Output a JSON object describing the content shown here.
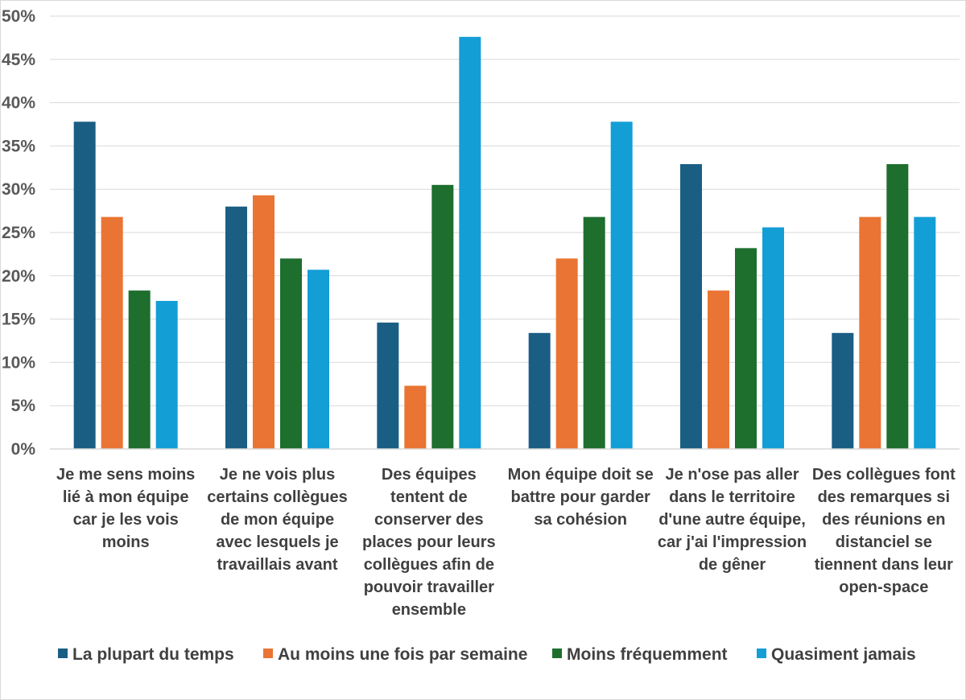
{
  "chart_data": {
    "type": "bar",
    "title": "",
    "xlabel": "",
    "ylabel": "",
    "ylim": [
      0,
      50
    ],
    "y_tick_step": 5,
    "y_tick_format": "percent",
    "grid": true,
    "legend_position": "bottom",
    "categories": [
      [
        "Je me sens moins",
        "lié à mon équipe",
        "car je les vois",
        "moins"
      ],
      [
        "Je ne vois plus",
        "certains collègues",
        "de mon équipe",
        "avec lesquels je",
        "travaillais avant"
      ],
      [
        "Des équipes",
        "tentent de",
        "conserver des",
        "places pour leurs",
        "collègues afin de",
        "pouvoir travailler",
        "ensemble"
      ],
      [
        "Mon équipe doit se",
        "battre pour garder",
        "sa cohésion"
      ],
      [
        "Je n'ose pas aller",
        "dans le territoire",
        "d'une autre équipe,",
        "car j'ai l'impression",
        "de gêner"
      ],
      [
        "Des collègues font",
        "des remarques si",
        "des réunions en",
        "distanciel se",
        "tiennent dans leur",
        "open-space"
      ]
    ],
    "series": [
      {
        "name": "La plupart du temps",
        "color": "#1b5e84",
        "values": [
          37.8,
          28.0,
          14.6,
          13.4,
          32.9,
          13.4
        ]
      },
      {
        "name": "Au moins une fois par semaine",
        "color": "#ea7433",
        "values": [
          26.8,
          29.3,
          7.3,
          22.0,
          18.3,
          26.8
        ]
      },
      {
        "name": "Moins fréquemment",
        "color": "#1e6e2e",
        "values": [
          18.3,
          22.0,
          30.5,
          26.8,
          23.2,
          32.9
        ]
      },
      {
        "name": "Quasiment jamais",
        "color": "#139ed6",
        "values": [
          17.1,
          20.7,
          47.6,
          37.8,
          25.6,
          26.8
        ]
      }
    ]
  }
}
